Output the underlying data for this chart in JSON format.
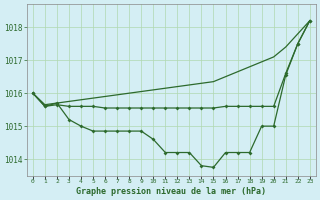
{
  "title": "Graphe pression niveau de la mer (hPa)",
  "background_color": "#d4eef4",
  "line_color": "#2d6a2d",
  "x_values": [
    0,
    1,
    2,
    3,
    4,
    5,
    6,
    7,
    8,
    9,
    10,
    11,
    12,
    13,
    14,
    15,
    16,
    17,
    18,
    19,
    20,
    21,
    22,
    23
  ],
  "s_straight": [
    1016.0,
    1015.65,
    1015.7,
    1015.75,
    1015.8,
    1015.85,
    1015.9,
    1015.95,
    1016.0,
    1016.05,
    1016.1,
    1016.15,
    1016.2,
    1016.25,
    1016.3,
    1016.35,
    1016.5,
    1016.65,
    1016.8,
    1016.95,
    1017.1,
    1017.4,
    1017.8,
    1018.2
  ],
  "s_flat": [
    1016.0,
    1015.6,
    1015.65,
    1015.6,
    1015.6,
    1015.6,
    1015.55,
    1015.55,
    1015.55,
    1015.55,
    1015.55,
    1015.55,
    1015.55,
    1015.55,
    1015.55,
    1015.55,
    1015.6,
    1015.6,
    1015.6,
    1015.6,
    1015.6,
    1016.6,
    1017.5,
    1018.2
  ],
  "s_dip": [
    1016.0,
    1015.6,
    1015.7,
    1015.2,
    1015.0,
    1014.85,
    1014.85,
    1014.85,
    1014.85,
    1014.85,
    1014.6,
    1014.2,
    1014.2,
    1014.2,
    1013.8,
    1013.75,
    1014.2,
    1014.2,
    1014.2,
    1015.0,
    1015.0,
    1016.55,
    1017.5,
    1018.2
  ],
  "ylim_min": 1013.5,
  "ylim_max": 1018.7,
  "yticks": [
    1014,
    1015,
    1016,
    1017,
    1018
  ],
  "grid_color": "#b0d8b0",
  "figwidth": 3.2,
  "figheight": 2.0,
  "dpi": 100
}
